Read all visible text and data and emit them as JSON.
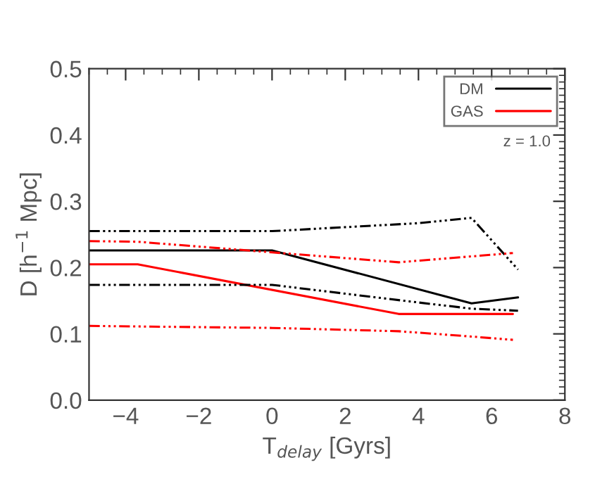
{
  "chart_data": {
    "type": "line",
    "xlabel": "T$_{delay}$ [Gyrs]",
    "ylabel": "D [h$^{−1}$ Mpc]",
    "xlim": [
      -5,
      8
    ],
    "xticks": [
      {
        "value": -4,
        "label": "−4"
      },
      {
        "value": -2,
        "label": "−2"
      },
      0,
      2,
      4,
      6,
      8
    ],
    "ylim": [
      0,
      0.5
    ],
    "yticks": [
      {
        "value": 0,
        "label": "0.0"
      },
      0.1,
      0.2,
      0.3,
      0.4,
      0.5
    ],
    "grid": false,
    "legend": "top right",
    "marker": "none",
    "annotations": [
      "z = 1.0"
    ],
    "series": [
      {
        "name": "DM",
        "color": "#000000",
        "line_style": "solid",
        "x": [
          -5,
          0,
          5.45,
          6.72
        ],
        "values": [
          0.226,
          0.226,
          0.146,
          0.155
        ]
      },
      {
        "name": "GAS",
        "color": "#ff0000",
        "line_style": "solid",
        "x": [
          -5,
          -3.67,
          3.46,
          5.45,
          6.58
        ],
        "values": [
          0.205,
          0.205,
          0.13,
          0.13,
          0.13
        ]
      },
      {
        "color": "#000000",
        "line_style": "dashed",
        "x": [
          -5,
          0,
          4.0,
          5.45,
          6.72
        ],
        "values": [
          0.255,
          0.255,
          0.267,
          0.275,
          0.197
        ]
      },
      {
        "color": "#000000",
        "line_style": "dashed",
        "x": [
          -5,
          0,
          3.6,
          5.45,
          6.72
        ],
        "values": [
          0.174,
          0.174,
          0.15,
          0.138,
          0.135
        ]
      },
      {
        "color": "#ff0000",
        "line_style": "dashed",
        "x": [
          -5,
          -3.67,
          0,
          3.46,
          6.58
        ],
        "values": [
          0.24,
          0.239,
          0.223,
          0.208,
          0.222
        ]
      },
      {
        "color": "#ff0000",
        "line_style": "dashed",
        "x": [
          -5,
          0,
          3.46,
          5.45,
          6.58
        ],
        "values": [
          0.112,
          0.109,
          0.104,
          0.096,
          0.091
        ]
      }
    ]
  }
}
